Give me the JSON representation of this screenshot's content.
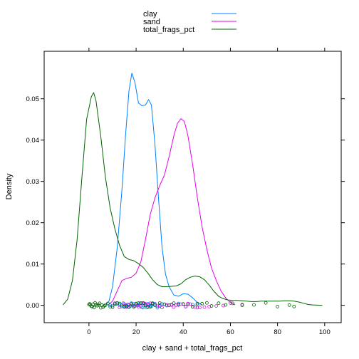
{
  "chart_data": {
    "type": "line",
    "title": "",
    "xlabel": "clay + sand + total_frags_pct",
    "ylabel": "Density",
    "xlim": [
      -19,
      107
    ],
    "ylim": [
      -0.0042,
      0.0615
    ],
    "x_ticks": [
      0,
      20,
      40,
      60,
      80,
      100
    ],
    "y_ticks": [
      0.0,
      0.01,
      0.02,
      0.03,
      0.04,
      0.05
    ],
    "x_tick_labels": [
      "0",
      "20",
      "40",
      "60",
      "80",
      "100"
    ],
    "y_tick_labels": [
      "0.00",
      "0.01",
      "0.02",
      "0.03",
      "0.04",
      "0.05"
    ],
    "grid": false,
    "legend_position": "top",
    "series": [
      {
        "name": "clay",
        "color": "#0080ff",
        "points": [
          [
            7,
            0
          ],
          [
            8.5,
            0.001
          ],
          [
            10,
            0.0045
          ],
          [
            12,
            0.014
          ],
          [
            14,
            0.028
          ],
          [
            15.5,
            0.041
          ],
          [
            17,
            0.052
          ],
          [
            18.2,
            0.0562
          ],
          [
            19.5,
            0.054
          ],
          [
            21,
            0.049
          ],
          [
            22.5,
            0.0483
          ],
          [
            24,
            0.0485
          ],
          [
            25.3,
            0.0498
          ],
          [
            26.5,
            0.0485
          ],
          [
            28,
            0.039
          ],
          [
            29.5,
            0.026
          ],
          [
            31,
            0.014
          ],
          [
            32.5,
            0.0075
          ],
          [
            34,
            0.0045
          ],
          [
            36,
            0.0025
          ],
          [
            38,
            0.0022
          ],
          [
            40,
            0.0028
          ],
          [
            42,
            0.0027
          ],
          [
            44,
            0.0018
          ],
          [
            46,
            0.0007
          ],
          [
            48,
            0.0001
          ]
        ],
        "rug": [
          9,
          10,
          11,
          12,
          13,
          14,
          14.5,
          15,
          15.5,
          16,
          16.5,
          17,
          17.5,
          18,
          18.5,
          19,
          19.5,
          20,
          20.5,
          21,
          21.5,
          22,
          22.5,
          23,
          23.5,
          24,
          24.5,
          25,
          25.5,
          26,
          26.5,
          27,
          28,
          29,
          30,
          31,
          33,
          35,
          38,
          41,
          44,
          46
        ]
      },
      {
        "name": "sand",
        "color": "#e600e6",
        "points": [
          [
            8,
            0
          ],
          [
            10,
            0.001
          ],
          [
            12,
            0.0035
          ],
          [
            14,
            0.006
          ],
          [
            16,
            0.0065
          ],
          [
            18,
            0.0068
          ],
          [
            20,
            0.0078
          ],
          [
            22,
            0.0105
          ],
          [
            24,
            0.016
          ],
          [
            26,
            0.022
          ],
          [
            28,
            0.026
          ],
          [
            30,
            0.029
          ],
          [
            32,
            0.0315
          ],
          [
            34,
            0.036
          ],
          [
            36,
            0.041
          ],
          [
            37.5,
            0.044
          ],
          [
            39,
            0.0452
          ],
          [
            40.5,
            0.0445
          ],
          [
            42,
            0.041
          ],
          [
            44,
            0.034
          ],
          [
            46,
            0.026
          ],
          [
            48,
            0.019
          ],
          [
            50,
            0.0135
          ],
          [
            52,
            0.009
          ],
          [
            54,
            0.006
          ],
          [
            56,
            0.0035
          ],
          [
            58,
            0.0018
          ],
          [
            60,
            0.0007
          ],
          [
            62,
            0.0001
          ]
        ],
        "rug": [
          11,
          13,
          15,
          16,
          17,
          18,
          19,
          20,
          21,
          22,
          23,
          24,
          25,
          26,
          27,
          28,
          29,
          30,
          31,
          32,
          33,
          34,
          35,
          36,
          37,
          38,
          39,
          40,
          41,
          42,
          43,
          44,
          45,
          46,
          47,
          49,
          51,
          54,
          57,
          60,
          65
        ]
      },
      {
        "name": "total_frags_pct",
        "color": "#006400",
        "points": [
          [
            -11,
            0.0001
          ],
          [
            -9,
            0.0015
          ],
          [
            -7,
            0.006
          ],
          [
            -5,
            0.016
          ],
          [
            -3,
            0.031
          ],
          [
            -1,
            0.045
          ],
          [
            1,
            0.0505
          ],
          [
            2,
            0.0515
          ],
          [
            3,
            0.0495
          ],
          [
            5,
            0.041
          ],
          [
            7,
            0.031
          ],
          [
            9,
            0.0235
          ],
          [
            11,
            0.0185
          ],
          [
            13,
            0.0145
          ],
          [
            15,
            0.0118
          ],
          [
            17,
            0.0111
          ],
          [
            19,
            0.0108
          ],
          [
            21,
            0.0101
          ],
          [
            23,
            0.0092
          ],
          [
            25,
            0.0078
          ],
          [
            27,
            0.0062
          ],
          [
            29,
            0.005
          ],
          [
            31,
            0.0045
          ],
          [
            33,
            0.0045
          ],
          [
            35,
            0.0046
          ],
          [
            37,
            0.0047
          ],
          [
            39,
            0.0052
          ],
          [
            41,
            0.0062
          ],
          [
            43,
            0.0068
          ],
          [
            45,
            0.0071
          ],
          [
            47,
            0.0069
          ],
          [
            49,
            0.0062
          ],
          [
            51,
            0.0049
          ],
          [
            53,
            0.0034
          ],
          [
            55,
            0.0022
          ],
          [
            57,
            0.0016
          ],
          [
            59,
            0.0013
          ],
          [
            61,
            0.0012
          ],
          [
            63,
            0.0012
          ],
          [
            65,
            0.0011
          ],
          [
            67,
            0.001
          ],
          [
            69,
            0.0009
          ],
          [
            71,
            0.0009
          ],
          [
            73,
            0.001
          ],
          [
            75,
            0.001
          ],
          [
            77,
            0.001
          ],
          [
            79,
            0.001
          ],
          [
            81,
            0.001
          ],
          [
            83,
            0.0011
          ],
          [
            85,
            0.0011
          ],
          [
            87,
            0.001
          ],
          [
            89,
            0.0008
          ],
          [
            91,
            0.0005
          ],
          [
            93,
            0.0002
          ],
          [
            95,
            0.0001
          ],
          [
            99,
            0
          ]
        ],
        "rug": [
          0,
          0.3,
          0.6,
          1,
          1.4,
          1.8,
          2.2,
          2.6,
          3,
          3.5,
          4,
          4.5,
          5,
          5.5,
          6,
          6.5,
          7,
          8,
          9,
          10,
          11,
          12,
          13,
          14,
          15,
          16,
          17,
          18,
          19,
          20,
          21,
          22,
          23,
          24,
          25,
          26,
          27,
          28,
          30,
          32,
          34,
          36,
          38,
          40,
          42,
          44,
          46,
          48,
          50,
          52,
          55,
          58,
          61,
          65,
          70,
          75,
          80,
          85,
          87
        ]
      }
    ]
  }
}
